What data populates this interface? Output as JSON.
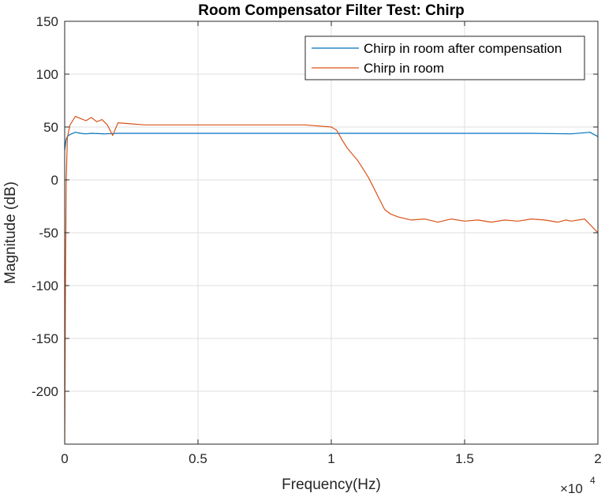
{
  "chart_data": {
    "type": "line",
    "title": "Room Compensator Filter Test: Chirp",
    "xlabel": "Frequency(Hz)",
    "ylabel": "Magnitude (dB)",
    "xlim": [
      0,
      2
    ],
    "ylim": [
      -250,
      150
    ],
    "x_multiplier_text": "×10",
    "x_multiplier_exponent": "4",
    "xticks": [
      0,
      0.5,
      1,
      1.5,
      2
    ],
    "xtick_labels": [
      "0",
      "0.5",
      "1",
      "1.5",
      "2"
    ],
    "yticks": [
      -200,
      -150,
      -100,
      -50,
      0,
      50,
      100,
      150
    ],
    "ytick_labels": [
      "-200",
      "-150",
      "-100",
      "-50",
      "0",
      "50",
      "100",
      "150"
    ],
    "grid": true,
    "legend_position": "top-right",
    "series": [
      {
        "name": "Chirp in room after compensation",
        "color": "#0072BD",
        "x": [
          0,
          0.005,
          0.01,
          0.02,
          0.04,
          0.06,
          0.08,
          0.1,
          0.15,
          0.2,
          0.3,
          0.5,
          0.75,
          1.0,
          1.25,
          1.5,
          1.75,
          1.9,
          1.97,
          2.0
        ],
        "y": [
          28,
          38,
          41,
          43,
          45,
          44,
          43.5,
          44,
          43.5,
          44,
          44,
          44,
          44,
          44,
          44,
          44,
          44,
          43.5,
          45,
          41
        ]
      },
      {
        "name": "Chirp in room",
        "color": "#D95319",
        "x": [
          0,
          0.003,
          0.006,
          0.01,
          0.02,
          0.04,
          0.06,
          0.08,
          0.1,
          0.12,
          0.14,
          0.16,
          0.18,
          0.19,
          0.2,
          0.25,
          0.3,
          0.4,
          0.5,
          0.6,
          0.7,
          0.8,
          0.9,
          1.0,
          1.02,
          1.04,
          1.06,
          1.08,
          1.1,
          1.12,
          1.14,
          1.16,
          1.18,
          1.2,
          1.22,
          1.25,
          1.3,
          1.35,
          1.4,
          1.45,
          1.5,
          1.55,
          1.6,
          1.65,
          1.7,
          1.75,
          1.8,
          1.85,
          1.88,
          1.9,
          1.95,
          2.0
        ],
        "y": [
          -250,
          -100,
          0,
          40,
          52,
          60,
          58,
          56,
          59,
          55,
          57,
          52,
          42,
          48,
          54,
          53,
          52,
          52,
          52,
          52,
          52,
          52,
          52,
          50,
          47,
          38,
          30,
          24,
          18,
          10,
          2,
          -8,
          -18,
          -28,
          -32,
          -35,
          -38,
          -37,
          -40,
          -37,
          -39,
          -38,
          -40,
          -38,
          -39,
          -37,
          -38,
          -40,
          -38,
          -39,
          -37,
          -50
        ]
      }
    ]
  }
}
